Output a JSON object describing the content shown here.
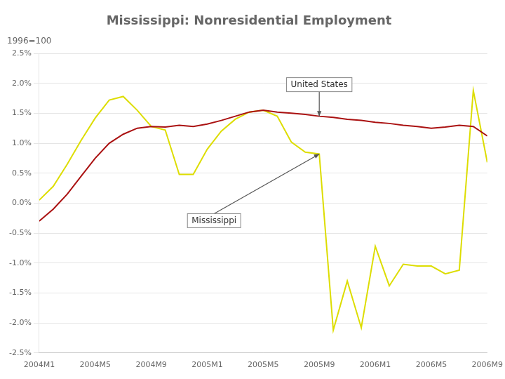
{
  "chart_data": {
    "type": "line",
    "title": "Mississippi: Nonresidential Employment",
    "subtitle": "1996=100",
    "categories": [
      "2004M1",
      null,
      null,
      null,
      "2004M5",
      null,
      null,
      null,
      "2004M9",
      null,
      null,
      null,
      "2005M1",
      null,
      null,
      null,
      "2005M5",
      null,
      null,
      null,
      "2005M9",
      null,
      null,
      null,
      "2006M1",
      null,
      null,
      null,
      "2006M5",
      null,
      null,
      null,
      "2006M9"
    ],
    "series": [
      {
        "name": "United States",
        "color": "#aa1111",
        "values": [
          -0.3,
          -0.1,
          0.15,
          0.45,
          0.75,
          1.0,
          1.15,
          1.25,
          1.28,
          1.27,
          1.3,
          1.28,
          1.32,
          1.38,
          1.45,
          1.52,
          1.55,
          1.52,
          1.5,
          1.48,
          1.45,
          1.43,
          1.4,
          1.38,
          1.35,
          1.33,
          1.3,
          1.28,
          1.25,
          1.27,
          1.3,
          1.28,
          1.12
        ]
      },
      {
        "name": "Mississippi",
        "color": "#dddd00",
        "values": [
          0.05,
          0.28,
          0.65,
          1.05,
          1.42,
          1.72,
          1.78,
          1.55,
          1.28,
          1.22,
          0.48,
          0.48,
          0.9,
          1.2,
          1.4,
          1.52,
          1.55,
          1.45,
          1.02,
          0.85,
          0.82,
          -2.12,
          -1.3,
          -2.08,
          -0.72,
          -1.38,
          -1.02,
          -1.05,
          -1.05,
          -1.18,
          -1.12,
          1.88,
          0.68
        ]
      }
    ],
    "ylim": [
      -2.5,
      2.5
    ],
    "yticks": [
      {
        "value": -2.5,
        "label": "-2.5%"
      },
      {
        "value": -2.0,
        "label": "-2.0%"
      },
      {
        "value": -1.5,
        "label": "-1.5%"
      },
      {
        "value": -1.0,
        "label": "-1.0%"
      },
      {
        "value": -0.5,
        "label": "-0.5%"
      },
      {
        "value": 0.0,
        "label": "0.0%"
      },
      {
        "value": 0.5,
        "label": "0.5%"
      },
      {
        "value": 1.0,
        "label": "1.0%"
      },
      {
        "value": 1.5,
        "label": "1.5%"
      },
      {
        "value": 2.0,
        "label": "2.0%"
      },
      {
        "value": 2.5,
        "label": "2.5%"
      }
    ],
    "grid": true
  }
}
